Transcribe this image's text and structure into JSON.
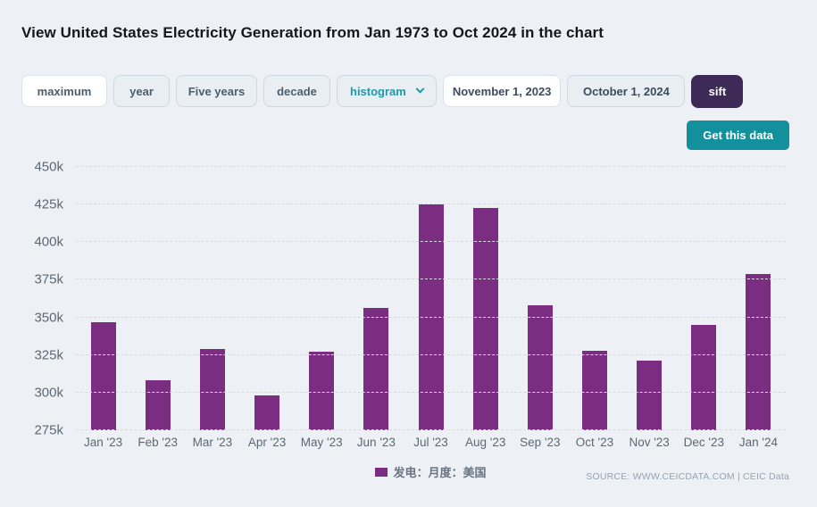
{
  "title": "View United States Electricity Generation from Jan 1973 to Oct 2024 in the chart",
  "controls": {
    "range_buttons": [
      {
        "label": "maximum",
        "active": true
      },
      {
        "label": "year",
        "active": false
      },
      {
        "label": "Five years",
        "active": false
      },
      {
        "label": "decade",
        "active": false
      }
    ],
    "chart_type": {
      "value": "histogram"
    },
    "start_date": {
      "value": "November 1, 2023"
    },
    "end_date": {
      "value": "October 1, 2024"
    },
    "sift_label": "sift",
    "get_data_label": "Get this data"
  },
  "chart_data": {
    "type": "bar",
    "title": "",
    "categories": [
      "Jan '23",
      "Feb '23",
      "Mar '23",
      "Apr '23",
      "May '23",
      "Jun '23",
      "Jul '23",
      "Aug '23",
      "Sep '23",
      "Oct '23",
      "Nov '23",
      "Dec '23",
      "Jan '24"
    ],
    "values": [
      347,
      308,
      329,
      298,
      327,
      356,
      425,
      423,
      358,
      328,
      321,
      345,
      379
    ],
    "value_unit": "k (thousand GWh, matching y-axis tick suffix)",
    "ylim": [
      275,
      450
    ],
    "y_ticks": [
      450,
      425,
      400,
      375,
      350,
      325,
      300,
      275
    ],
    "y_tick_suffix": "k",
    "grid": "horizontal dashed",
    "bar_color": "#7b2d82",
    "legend": [
      {
        "label": "发电：月度：美国",
        "color": "#7b2d82"
      }
    ],
    "legend_position": "bottom-center",
    "source": "SOURCE: WWW.CEICDATA.COM | CEIC Data"
  },
  "colors": {
    "background": "#edf1f6",
    "bar": "#7b2d82",
    "get_data_button": "#12919d",
    "chart_type_text": "#1b9aaa",
    "sift_button": "#3e2a56",
    "button_text": "#4e5d6b",
    "axis_text": "#5c6873",
    "grid_line": "#d6dbe2",
    "source_text": "#98a3af"
  }
}
